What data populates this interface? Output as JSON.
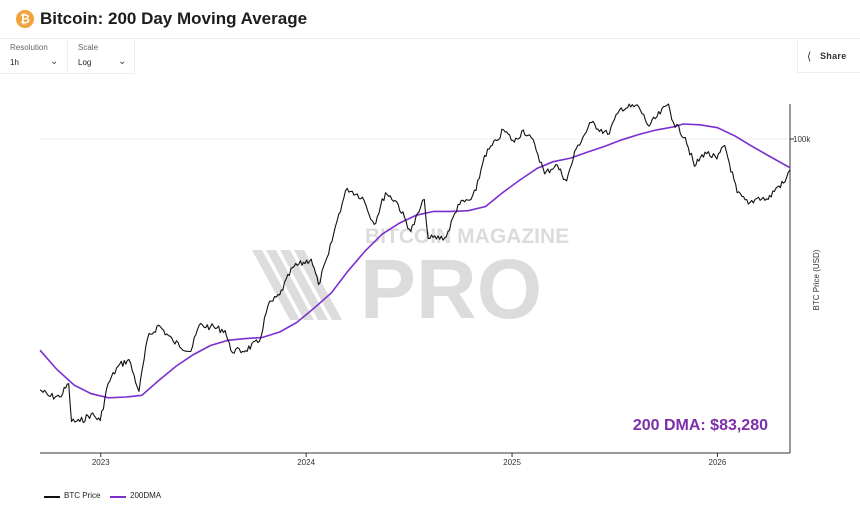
{
  "header": {
    "logo_glyph": "₿",
    "title": "Bitcoin: 200 Day Moving Average"
  },
  "controls": {
    "resolution": {
      "label": "Resolution",
      "value": "1h"
    },
    "scale": {
      "label": "Scale",
      "value": "Log"
    },
    "share_label": "Share"
  },
  "watermark": {
    "line1": "BITCOIN MAGAZINE",
    "line2": "PRO"
  },
  "annotation": "200 DMA: $83,280",
  "colors": {
    "price": "#111111",
    "dma": "#7b2fcf",
    "annotation": "#7b2fa8",
    "logo": "#f2a33c"
  },
  "chart_data": {
    "type": "line",
    "yscale": "log",
    "ylabel": "BTC Price (USD)",
    "y_ticks": [
      {
        "value": 100000,
        "label": "100k"
      }
    ],
    "ylim": [
      13500,
      125000
    ],
    "xlim": [
      "2022-09-15",
      "2026-05-10"
    ],
    "x_ticks": [
      {
        "value": "2023-01-01",
        "label": "2023"
      },
      {
        "value": "2024-01-01",
        "label": "2024"
      },
      {
        "value": "2025-01-01",
        "label": "2025"
      },
      {
        "value": "2026-01-01",
        "label": "2026"
      }
    ],
    "grid": "horizontal at 100k",
    "legend": "bottom-left",
    "series": [
      {
        "name": "BTC Price",
        "color": "#111111",
        "points": [
          [
            "2022-09-15",
            20200
          ],
          [
            "2022-10-01",
            19400
          ],
          [
            "2022-10-20",
            19300
          ],
          [
            "2022-11-05",
            21000
          ],
          [
            "2022-11-10",
            16500
          ],
          [
            "2022-11-25",
            16500
          ],
          [
            "2022-12-15",
            17300
          ],
          [
            "2022-12-31",
            16600
          ],
          [
            "2023-01-14",
            21000
          ],
          [
            "2023-02-01",
            23500
          ],
          [
            "2023-02-20",
            24500
          ],
          [
            "2023-03-10",
            20000
          ],
          [
            "2023-03-25",
            28000
          ],
          [
            "2023-04-14",
            30500
          ],
          [
            "2023-05-10",
            27500
          ],
          [
            "2023-06-10",
            25800
          ],
          [
            "2023-06-25",
            30500
          ],
          [
            "2023-07-15",
            30200
          ],
          [
            "2023-08-10",
            29500
          ],
          [
            "2023-08-20",
            26000
          ],
          [
            "2023-09-10",
            25800
          ],
          [
            "2023-10-10",
            27500
          ],
          [
            "2023-10-25",
            34500
          ],
          [
            "2023-11-15",
            37000
          ],
          [
            "2023-12-08",
            44000
          ],
          [
            "2024-01-10",
            46500
          ],
          [
            "2024-01-23",
            39500
          ],
          [
            "2024-02-10",
            48000
          ],
          [
            "2024-02-28",
            62000
          ],
          [
            "2024-03-14",
            73000
          ],
          [
            "2024-04-10",
            69000
          ],
          [
            "2024-05-01",
            58000
          ],
          [
            "2024-05-21",
            71000
          ],
          [
            "2024-06-10",
            67000
          ],
          [
            "2024-07-05",
            55500
          ],
          [
            "2024-07-29",
            68000
          ],
          [
            "2024-08-05",
            53000
          ],
          [
            "2024-09-06",
            53500
          ],
          [
            "2024-09-27",
            65800
          ],
          [
            "2024-10-20",
            68000
          ],
          [
            "2024-10-29",
            72000
          ],
          [
            "2024-11-13",
            90000
          ],
          [
            "2024-12-05",
            99000
          ],
          [
            "2024-12-17",
            106000
          ],
          [
            "2025-01-05",
            98000
          ],
          [
            "2025-01-21",
            106000
          ],
          [
            "2025-02-10",
            97000
          ],
          [
            "2025-02-28",
            80000
          ],
          [
            "2025-03-20",
            85000
          ],
          [
            "2025-04-08",
            76500
          ],
          [
            "2025-04-25",
            94000
          ],
          [
            "2025-05-22",
            111000
          ],
          [
            "2025-06-20",
            103000
          ],
          [
            "2025-07-14",
            122000
          ],
          [
            "2025-08-14",
            123000
          ],
          [
            "2025-09-01",
            108500
          ],
          [
            "2025-10-06",
            125000
          ],
          [
            "2025-10-15",
            111000
          ],
          [
            "2025-11-05",
            101000
          ],
          [
            "2025-11-21",
            84000
          ],
          [
            "2025-12-10",
            92000
          ],
          [
            "2025-12-31",
            88000
          ],
          [
            "2026-01-14",
            96000
          ],
          [
            "2026-02-05",
            71000
          ],
          [
            "2026-02-25",
            66000
          ],
          [
            "2026-03-15",
            69000
          ],
          [
            "2026-04-01",
            68000
          ],
          [
            "2026-04-15",
            73000
          ],
          [
            "2026-05-01",
            76000
          ],
          [
            "2026-05-10",
            82000
          ]
        ]
      },
      {
        "name": "200DMA",
        "color": "#7b2fcf",
        "points": [
          [
            "2022-09-15",
            26000
          ],
          [
            "2022-10-15",
            23000
          ],
          [
            "2022-11-15",
            20800
          ],
          [
            "2022-12-15",
            19700
          ],
          [
            "2023-01-15",
            19200
          ],
          [
            "2023-02-15",
            19300
          ],
          [
            "2023-03-15",
            19500
          ],
          [
            "2023-04-15",
            21500
          ],
          [
            "2023-05-15",
            23500
          ],
          [
            "2023-06-15",
            25300
          ],
          [
            "2023-07-15",
            26800
          ],
          [
            "2023-08-15",
            27700
          ],
          [
            "2023-09-15",
            28000
          ],
          [
            "2023-10-15",
            28200
          ],
          [
            "2023-11-15",
            29200
          ],
          [
            "2023-12-15",
            31000
          ],
          [
            "2024-01-15",
            34000
          ],
          [
            "2024-02-15",
            37500
          ],
          [
            "2024-03-15",
            43000
          ],
          [
            "2024-04-15",
            49000
          ],
          [
            "2024-05-15",
            54500
          ],
          [
            "2024-06-15",
            58500
          ],
          [
            "2024-07-15",
            61500
          ],
          [
            "2024-08-15",
            63000
          ],
          [
            "2024-09-15",
            63000
          ],
          [
            "2024-10-15",
            63300
          ],
          [
            "2024-11-15",
            65000
          ],
          [
            "2024-12-15",
            71000
          ],
          [
            "2025-01-15",
            77000
          ],
          [
            "2025-02-15",
            83000
          ],
          [
            "2025-03-15",
            86500
          ],
          [
            "2025-04-15",
            88500
          ],
          [
            "2025-05-15",
            92000
          ],
          [
            "2025-06-15",
            95500
          ],
          [
            "2025-07-15",
            99500
          ],
          [
            "2025-08-15",
            103000
          ],
          [
            "2025-09-15",
            106000
          ],
          [
            "2025-10-15",
            108000
          ],
          [
            "2025-11-01",
            110000
          ],
          [
            "2025-12-01",
            109500
          ],
          [
            "2026-01-01",
            107500
          ],
          [
            "2026-02-01",
            102000
          ],
          [
            "2026-03-01",
            96000
          ],
          [
            "2026-04-01",
            90000
          ],
          [
            "2026-05-10",
            83280
          ]
        ]
      }
    ]
  }
}
